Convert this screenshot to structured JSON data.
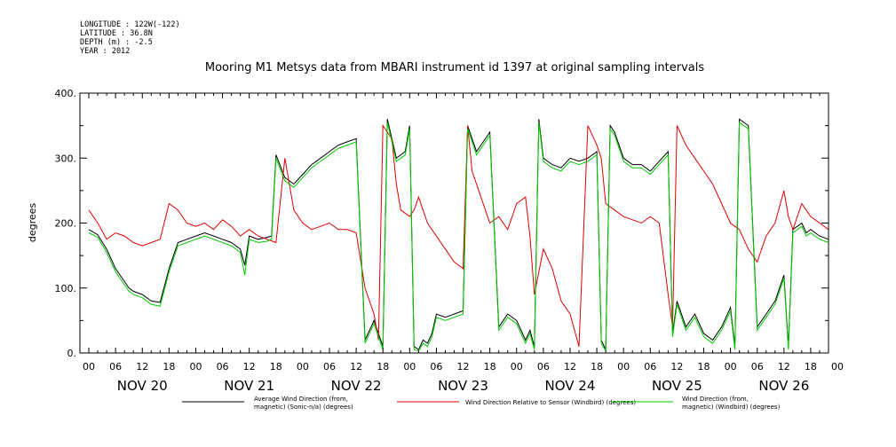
{
  "header": {
    "lines": [
      "LONGITUDE : 122W(-122)",
      "LATITUDE : 36.8N",
      "DEPTH (m) : -2.5",
      "YEAR : 2012"
    ]
  },
  "chart_data": {
    "type": "line",
    "title": "Mooring M1 Metsys data from MBARI instrument id 1397 at original sampling intervals",
    "ylabel": "degrees",
    "ylim": [
      0,
      400
    ],
    "y_ticks": [
      "0.",
      "100.",
      "200.",
      "300.",
      "400."
    ],
    "xlim_hours": [
      -2,
      166
    ],
    "x_hour_ticks": [
      "00",
      "06",
      "12",
      "18",
      "00",
      "06",
      "12",
      "18",
      "00",
      "06",
      "12",
      "18",
      "00",
      "06",
      "12",
      "18",
      "00",
      "06",
      "12",
      "18",
      "00",
      "06",
      "12",
      "18",
      "00",
      "06",
      "12",
      "18",
      "00"
    ],
    "day_labels": [
      "NOV 20",
      "NOV 21",
      "NOV 22",
      "NOV 23",
      "NOV 24",
      "NOV 25",
      "NOV 26"
    ],
    "grid": false,
    "legend_position": "bottom",
    "series": [
      {
        "name": "Average Wind Direction (from, magnetic) (Sonic-n/a) (degrees)",
        "color": "#000000",
        "x": [
          0,
          2,
          4,
          6,
          8,
          9,
          10,
          12,
          14,
          16,
          18,
          20,
          22,
          24,
          26,
          28,
          30,
          32,
          34,
          35,
          36,
          38,
          40,
          41,
          42,
          44,
          46,
          48,
          50,
          52,
          54,
          56,
          58,
          60,
          62,
          64,
          65,
          66,
          67,
          68,
          69,
          70,
          71,
          72,
          73,
          74,
          75,
          76,
          77,
          78,
          80,
          82,
          84,
          85,
          86,
          87,
          88,
          90,
          92,
          94,
          96,
          98,
          99,
          100,
          101,
          102,
          104,
          106,
          108,
          110,
          112,
          114,
          115,
          116,
          117,
          118,
          120,
          122,
          124,
          126,
          128,
          130,
          131,
          132,
          134,
          136,
          138,
          140,
          142,
          144,
          145,
          146,
          148,
          150,
          152,
          154,
          156,
          157,
          158,
          160,
          161,
          162,
          164,
          166
        ],
        "y": [
          190,
          182,
          160,
          130,
          110,
          100,
          95,
          90,
          80,
          78,
          130,
          170,
          175,
          180,
          185,
          180,
          175,
          170,
          160,
          135,
          180,
          175,
          178,
          180,
          305,
          270,
          260,
          275,
          290,
          300,
          310,
          320,
          325,
          330,
          20,
          50,
          30,
          10,
          360,
          330,
          300,
          305,
          310,
          350,
          10,
          5,
          20,
          15,
          30,
          60,
          55,
          60,
          65,
          350,
          330,
          310,
          320,
          340,
          40,
          60,
          50,
          20,
          35,
          10,
          360,
          300,
          290,
          285,
          300,
          295,
          300,
          310,
          20,
          5,
          350,
          340,
          300,
          290,
          290,
          280,
          295,
          310,
          30,
          80,
          40,
          60,
          30,
          20,
          40,
          70,
          10,
          360,
          350,
          40,
          60,
          80,
          120,
          10,
          190,
          200,
          185,
          190,
          180,
          175
        ]
      },
      {
        "name": "Wind Direction Relative to Sensor (Windbird) (degrees)",
        "color": "#dd0000",
        "x": [
          0,
          2,
          4,
          6,
          8,
          10,
          12,
          14,
          16,
          18,
          20,
          22,
          24,
          26,
          28,
          30,
          32,
          34,
          36,
          38,
          40,
          42,
          44,
          46,
          48,
          50,
          52,
          54,
          56,
          58,
          60,
          62,
          64,
          65,
          66,
          67,
          68,
          69,
          70,
          72,
          73,
          74,
          76,
          78,
          80,
          82,
          84,
          85,
          86,
          88,
          90,
          92,
          94,
          96,
          98,
          99,
          100,
          102,
          104,
          106,
          108,
          110,
          112,
          114,
          115,
          116,
          118,
          120,
          122,
          124,
          126,
          128,
          130,
          131,
          132,
          134,
          136,
          138,
          140,
          142,
          144,
          146,
          148,
          150,
          152,
          154,
          156,
          157,
          158,
          160,
          162,
          164,
          166
        ],
        "y": [
          220,
          200,
          175,
          185,
          180,
          170,
          165,
          170,
          175,
          230,
          220,
          200,
          195,
          200,
          190,
          205,
          195,
          180,
          190,
          180,
          175,
          170,
          300,
          220,
          200,
          190,
          195,
          200,
          190,
          190,
          185,
          100,
          60,
          20,
          350,
          340,
          330,
          260,
          220,
          210,
          220,
          240,
          200,
          180,
          160,
          140,
          130,
          350,
          280,
          240,
          200,
          210,
          190,
          230,
          240,
          180,
          90,
          160,
          130,
          80,
          60,
          10,
          350,
          320,
          300,
          230,
          220,
          210,
          205,
          200,
          210,
          200,
          90,
          40,
          350,
          320,
          300,
          280,
          260,
          230,
          200,
          190,
          160,
          140,
          180,
          200,
          250,
          210,
          190,
          230,
          210,
          200,
          190
        ]
      },
      {
        "name": "Wind Direction (from, magnetic) (Windbird) (degrees)",
        "color": "#00cc00",
        "x": [
          0,
          2,
          4,
          6,
          8,
          9,
          10,
          12,
          14,
          16,
          18,
          20,
          22,
          24,
          26,
          28,
          30,
          32,
          34,
          35,
          36,
          38,
          40,
          41,
          42,
          44,
          46,
          48,
          50,
          52,
          54,
          56,
          58,
          60,
          62,
          64,
          65,
          66,
          67,
          68,
          69,
          70,
          71,
          72,
          73,
          74,
          75,
          76,
          77,
          78,
          80,
          82,
          84,
          85,
          86,
          87,
          88,
          90,
          92,
          94,
          96,
          98,
          99,
          100,
          101,
          102,
          104,
          106,
          108,
          110,
          112,
          114,
          115,
          116,
          117,
          118,
          120,
          122,
          124,
          126,
          128,
          130,
          131,
          132,
          134,
          136,
          138,
          140,
          142,
          144,
          145,
          146,
          148,
          150,
          152,
          154,
          156,
          157,
          158,
          160,
          161,
          162,
          164,
          166
        ],
        "y": [
          185,
          178,
          155,
          125,
          105,
          95,
          90,
          85,
          75,
          72,
          125,
          165,
          170,
          175,
          180,
          175,
          170,
          165,
          155,
          120,
          175,
          170,
          172,
          175,
          300,
          265,
          255,
          270,
          285,
          295,
          305,
          315,
          320,
          325,
          15,
          45,
          25,
          5,
          355,
          325,
          295,
          300,
          305,
          345,
          5,
          3,
          15,
          10,
          25,
          55,
          50,
          55,
          60,
          345,
          325,
          305,
          315,
          335,
          35,
          55,
          45,
          15,
          30,
          5,
          355,
          295,
          285,
          280,
          295,
          290,
          295,
          305,
          15,
          3,
          345,
          335,
          295,
          285,
          285,
          275,
          290,
          305,
          25,
          75,
          35,
          55,
          25,
          15,
          35,
          65,
          5,
          355,
          345,
          35,
          55,
          75,
          115,
          5,
          185,
          195,
          180,
          185,
          175,
          170
        ]
      }
    ]
  }
}
